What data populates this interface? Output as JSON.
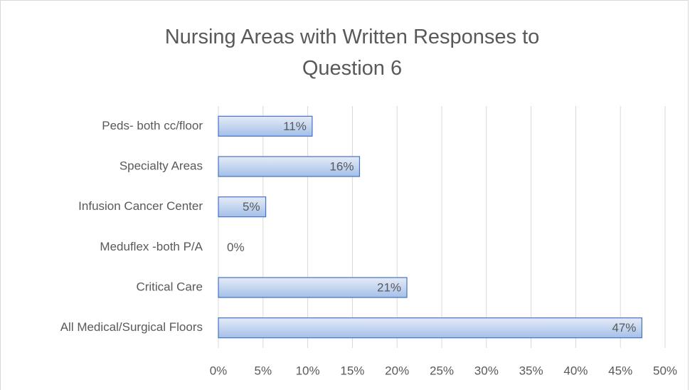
{
  "chart_data": {
    "type": "bar",
    "orientation": "horizontal",
    "title": "Nursing Areas with Written Responses to Question 6",
    "categories": [
      "Peds- both cc/floor",
      "Specialty Areas",
      "Infusion Cancer Center",
      "Meduflex -both P/A",
      "Critical Care",
      "All Medical/Surgical Floors"
    ],
    "values": [
      10.5,
      15.8,
      5.3,
      0,
      21.1,
      47.4
    ],
    "value_labels": [
      "11%",
      "16%",
      "5%",
      "0%",
      "21%",
      "47%"
    ],
    "color": "#4472c4",
    "xlim": [
      0,
      50
    ],
    "xticks": [
      {
        "value": 0,
        "label": "0%"
      },
      {
        "value": 5,
        "label": "5%"
      },
      {
        "value": 10,
        "label": "10%"
      },
      {
        "value": 15,
        "label": "15%"
      },
      {
        "value": 20,
        "label": "20%"
      },
      {
        "value": 25,
        "label": "25%"
      },
      {
        "value": 30,
        "label": "30%"
      },
      {
        "value": 35,
        "label": "35%"
      },
      {
        "value": 40,
        "label": "40%"
      },
      {
        "value": 45,
        "label": "45%"
      },
      {
        "value": 50,
        "label": "50%"
      }
    ],
    "grid": true
  }
}
